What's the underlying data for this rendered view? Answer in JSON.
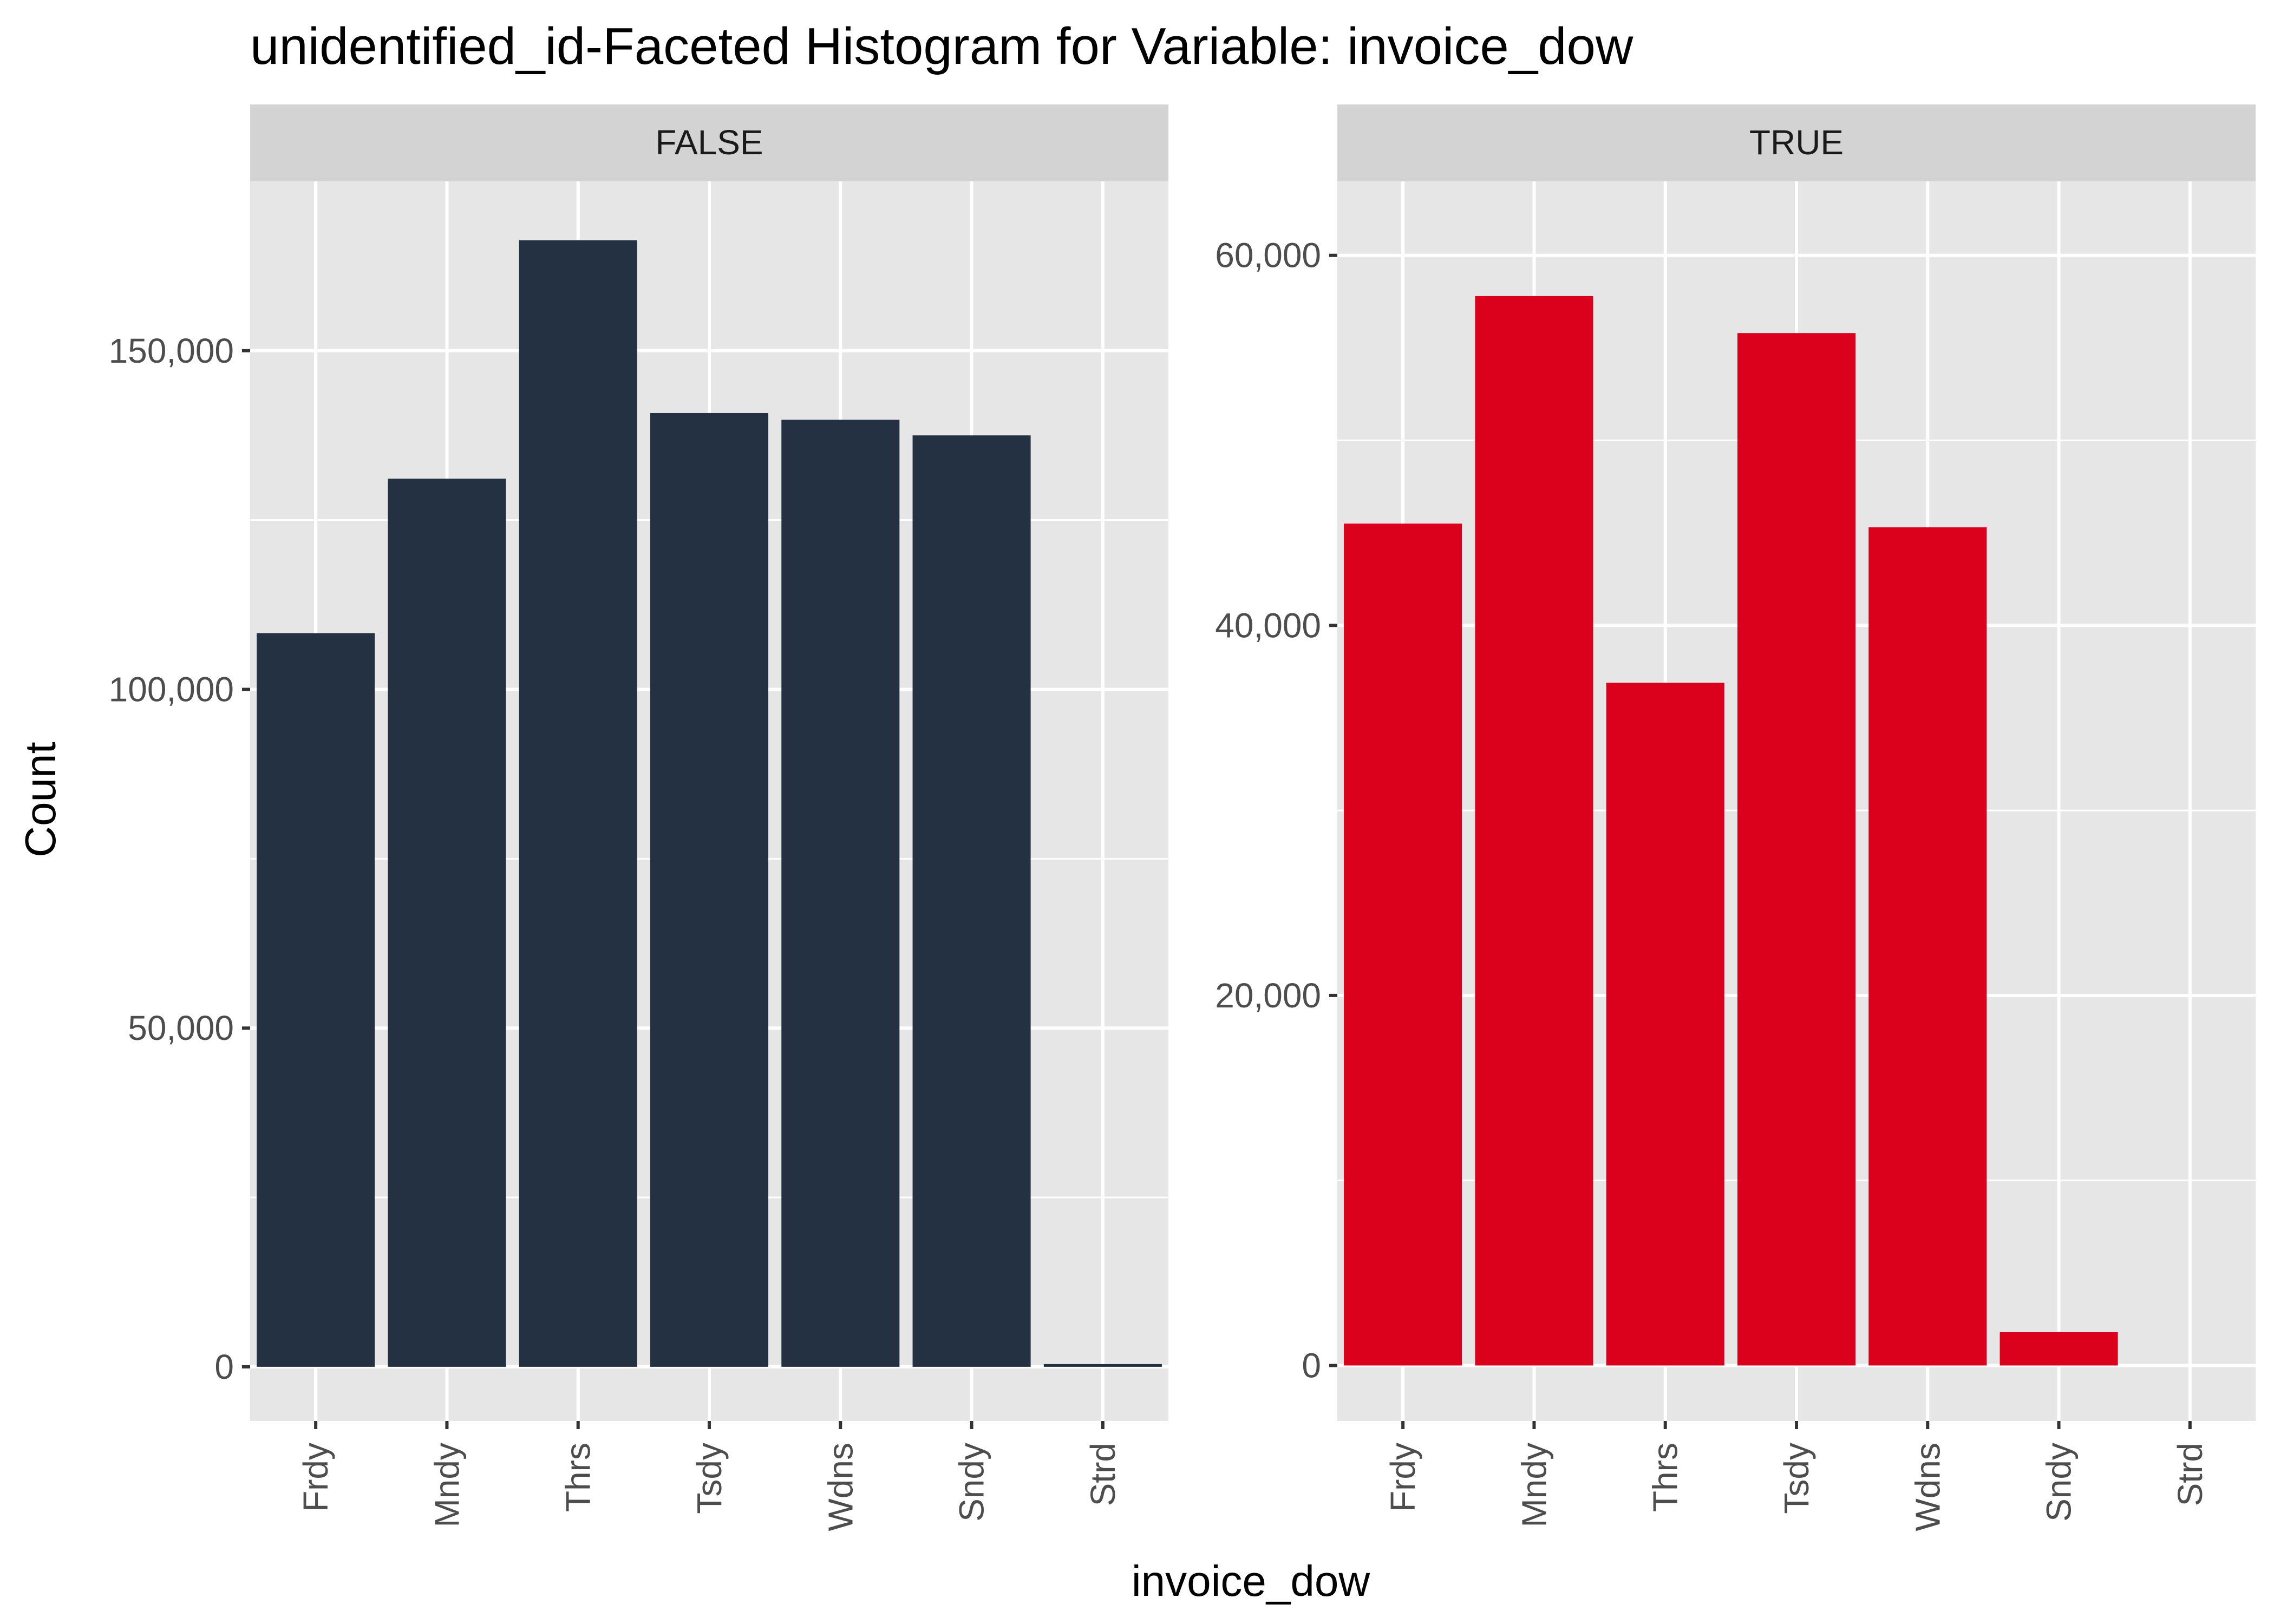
{
  "chart_data": {
    "type": "bar",
    "title": "unidentified_id-Faceted Histogram for Variable: invoice_dow",
    "xlabel": "invoice_dow",
    "ylabel": "Count",
    "categories": [
      "Frdy",
      "Mndy",
      "Thrs",
      "Tsdy",
      "Wdns",
      "Sndy",
      "Strd"
    ],
    "facets": [
      {
        "label": "FALSE",
        "color": "#233142",
        "values": [
          108300,
          131100,
          166300,
          140800,
          139800,
          137500,
          400
        ],
        "ylim": [
          -8000,
          175000
        ],
        "yticks": [
          0,
          50000,
          100000,
          150000
        ],
        "ytick_labels": [
          "0",
          "50,000",
          "100,000",
          "150,000"
        ]
      },
      {
        "label": "TRUE",
        "color": "#DB001B",
        "values": [
          45500,
          57800,
          36900,
          55800,
          45300,
          1800,
          0
        ],
        "ylim": [
          -3000,
          64000
        ],
        "yticks": [
          0,
          20000,
          40000,
          60000
        ],
        "ytick_labels": [
          "0",
          "20,000",
          "40,000",
          "60,000"
        ]
      }
    ],
    "grid": true,
    "legend": "none",
    "panel_background": "#E6E6E6",
    "strip_background": "#D3D3D3"
  }
}
